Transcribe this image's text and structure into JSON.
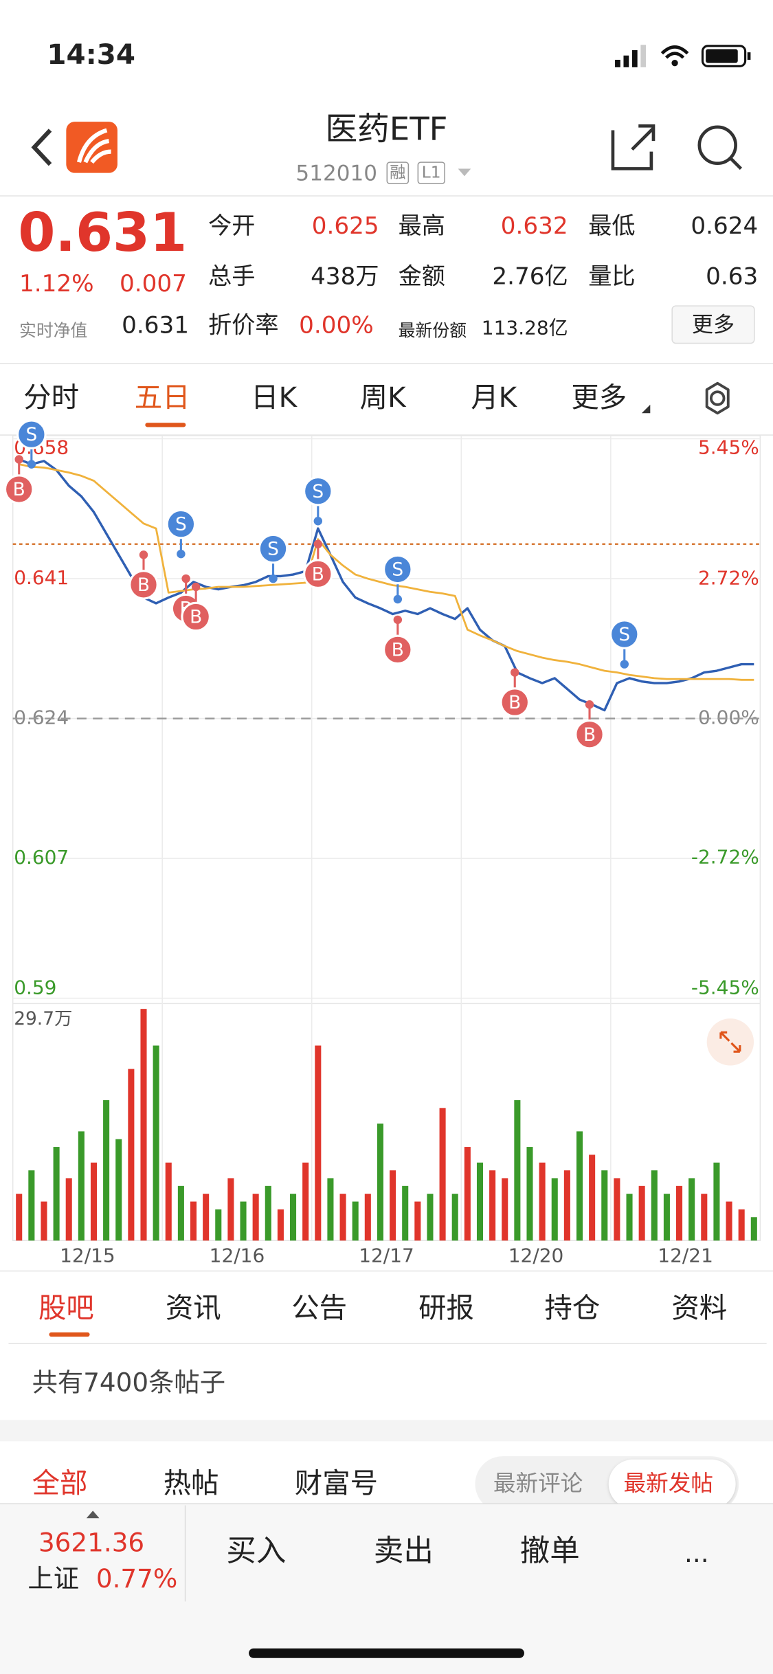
{
  "status_bar": {
    "time": "14:34"
  },
  "header": {
    "title": "医药ETF",
    "code": "512010",
    "badges": [
      "融",
      "L1"
    ]
  },
  "quote": {
    "price": "0.631",
    "change_pct": "1.12%",
    "change": "0.007",
    "nav_label": "实时净值",
    "nav": "0.631",
    "fields": [
      {
        "label": "今开",
        "value": "0.625"
      },
      {
        "label": "最高",
        "value": "0.632"
      },
      {
        "label": "最低",
        "value": "0.624"
      },
      {
        "label": "总手",
        "value": "438万"
      },
      {
        "label": "金额",
        "value": "2.76亿"
      },
      {
        "label": "量比",
        "value": "0.63"
      },
      {
        "label": "折价率",
        "value": "0.00%"
      },
      {
        "label": "最新份额",
        "value": "113.28亿"
      }
    ],
    "more": "更多"
  },
  "tabs": {
    "items": [
      "分时",
      "五日",
      "日K",
      "周K",
      "月K",
      "更多"
    ]
  },
  "chart": {
    "type": "line",
    "categories": [
      "12/15",
      "12/16",
      "12/17",
      "12/20",
      "12/21"
    ],
    "ylim": [
      0.59,
      0.658
    ],
    "yticks": [
      0.59,
      0.607,
      0.624,
      0.641,
      0.658
    ],
    "y2lim": [
      -5.45,
      5.45
    ],
    "y2ticks": [
      {
        "value": -5.45,
        "label": "-5.45%"
      },
      {
        "value": -2.72,
        "label": "-2.72%"
      },
      {
        "value": 0,
        "label": "0.00%"
      },
      {
        "value": 2.72,
        "label": "2.72%"
      },
      {
        "value": 5.45,
        "label": "5.45%"
      }
    ],
    "prev_close": 0.624,
    "cost_line": 0.6452,
    "up_color": "#e0352b",
    "down_color": "#3a9a2a",
    "flat_color": "#888888",
    "series": [
      {
        "color": "#2f5fb3",
        "values": [
          0.6555,
          0.6549,
          0.6553,
          0.6542,
          0.6523,
          0.651,
          0.6491,
          0.6465,
          0.6439,
          0.6413,
          0.6387,
          0.638,
          0.6387,
          0.6393,
          0.6406,
          0.64,
          0.6397,
          0.64,
          0.6402,
          0.6406,
          0.6413,
          0.6413,
          0.6415,
          0.6419,
          0.6471,
          0.6439,
          0.6406,
          0.6387,
          0.638,
          0.6374,
          0.6367,
          0.6371,
          0.6367,
          0.6374,
          0.6367,
          0.6361,
          0.6374,
          0.6348,
          0.6335,
          0.6328,
          0.6296,
          0.6289,
          0.6283,
          0.6289,
          0.6276,
          0.6263,
          0.6257,
          0.625,
          0.6283,
          0.6289,
          0.6285,
          0.6283,
          0.6283,
          0.6285,
          0.6289,
          0.6296,
          0.6298,
          0.6302,
          0.6306,
          0.6306
        ]
      },
      {
        "color": "#f0b23c",
        "values": [
          0.6549,
          0.6546,
          0.6545,
          0.6542,
          0.6539,
          0.6535,
          0.6529,
          0.6516,
          0.6503,
          0.649,
          0.6477,
          0.6471,
          0.6393,
          0.6395,
          0.6397,
          0.6398,
          0.64,
          0.64,
          0.64,
          0.6401,
          0.6402,
          0.6403,
          0.6404,
          0.6405,
          0.6458,
          0.6439,
          0.6426,
          0.6415,
          0.641,
          0.6406,
          0.6402,
          0.64,
          0.6397,
          0.6394,
          0.6392,
          0.6389,
          0.6348,
          0.6341,
          0.6335,
          0.6328,
          0.6322,
          0.6318,
          0.6314,
          0.6311,
          0.6309,
          0.6306,
          0.6302,
          0.6298,
          0.6296,
          0.6293,
          0.6291,
          0.6289,
          0.6288,
          0.6288,
          0.6288,
          0.6288,
          0.6288,
          0.6288,
          0.6287,
          0.6287
        ]
      }
    ],
    "trades": [
      {
        "label": "B",
        "x": 0,
        "value": 0.6555
      },
      {
        "label": "S",
        "x": 1,
        "value": 0.6549
      },
      {
        "label": "B",
        "x": 10,
        "value": 0.6439
      },
      {
        "label": "S",
        "x": 13,
        "value": 0.644
      },
      {
        "label": "B",
        "x": 13.4,
        "value": 0.641
      },
      {
        "label": "B",
        "x": 14.2,
        "value": 0.64
      },
      {
        "label": "S",
        "x": 20.4,
        "value": 0.641
      },
      {
        "label": "S",
        "x": 24,
        "value": 0.648
      },
      {
        "label": "B",
        "x": 24,
        "value": 0.6452
      },
      {
        "label": "S",
        "x": 30.4,
        "value": 0.6385
      },
      {
        "label": "B",
        "x": 30.4,
        "value": 0.636
      },
      {
        "label": "B",
        "x": 39.8,
        "value": 0.6296
      },
      {
        "label": "B",
        "x": 45.8,
        "value": 0.6257
      },
      {
        "label": "S",
        "x": 48.6,
        "value": 0.6306
      }
    ],
    "volume": {
      "ylim": [
        0,
        29.7
      ],
      "yticks": [
        {
          "value": 29.7,
          "label": "29.7万"
        }
      ],
      "values": [
        6,
        9,
        5,
        12,
        8,
        14,
        10,
        18,
        13,
        22,
        29.7,
        25,
        10,
        7,
        5,
        6,
        4,
        8,
        5,
        6,
        7,
        4,
        6,
        10,
        25,
        8,
        6,
        5,
        6,
        15,
        9,
        7,
        5,
        6,
        17,
        6,
        12,
        10,
        9,
        8,
        18,
        12,
        10,
        8,
        9,
        14,
        11,
        9,
        8,
        6,
        7,
        9,
        6,
        7,
        8,
        6,
        10,
        5,
        4,
        3
      ],
      "colors": [
        "#e0352b",
        "#3a9a2a",
        "#e0352b",
        "#3a9a2a",
        "#e0352b",
        "#3a9a2a",
        "#e0352b",
        "#3a9a2a",
        "#3a9a2a",
        "#e0352b",
        "#e0352b",
        "#3a9a2a",
        "#e0352b",
        "#3a9a2a",
        "#e0352b",
        "#e0352b",
        "#3a9a2a",
        "#e0352b",
        "#3a9a2a",
        "#e0352b",
        "#3a9a2a",
        "#e0352b",
        "#3a9a2a",
        "#e0352b",
        "#e0352b",
        "#3a9a2a",
        "#e0352b",
        "#3a9a2a",
        "#e0352b",
        "#3a9a2a",
        "#e0352b",
        "#3a9a2a",
        "#e0352b",
        "#3a9a2a",
        "#e0352b",
        "#3a9a2a",
        "#e0352b",
        "#3a9a2a",
        "#e0352b",
        "#e0352b",
        "#3a9a2a",
        "#3a9a2a",
        "#e0352b",
        "#3a9a2a",
        "#e0352b",
        "#3a9a2a",
        "#e0352b",
        "#3a9a2a",
        "#e0352b",
        "#3a9a2a",
        "#e0352b",
        "#3a9a2a",
        "#3a9a2a",
        "#e0352b",
        "#3a9a2a",
        "#e0352b",
        "#3a9a2a",
        "#e0352b",
        "#e0352b",
        "#3a9a2a"
      ]
    }
  },
  "section_tabs": [
    "股吧",
    "资讯",
    "公告",
    "研报",
    "持仓",
    "资料"
  ],
  "forum": {
    "post_count": "共有7400条帖子",
    "filters": [
      "全部",
      "热帖",
      "财富号"
    ],
    "sort": [
      "最新评论",
      "最新发帖"
    ]
  },
  "bottom_bar": {
    "index_value": "3621.36",
    "index_name": "上证",
    "index_change": "0.77%",
    "actions": [
      "买入",
      "卖出",
      "撤单",
      "..."
    ]
  }
}
